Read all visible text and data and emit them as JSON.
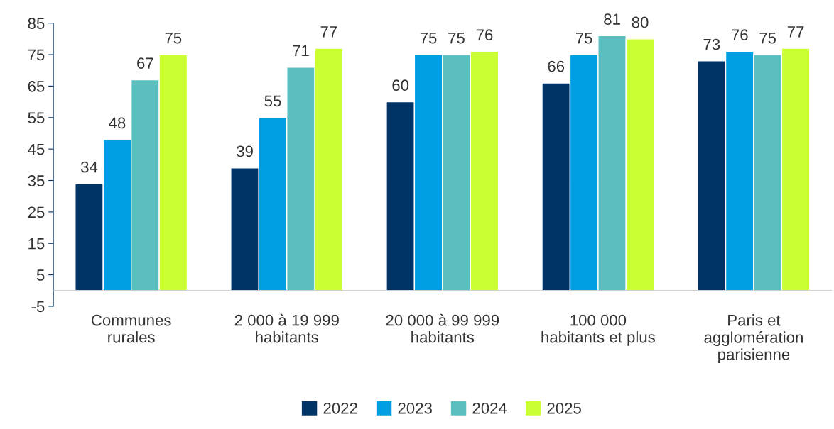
{
  "chart_data": {
    "type": "bar",
    "categories": [
      "Communes\nrurales",
      "2 000 à 19 999\nhabitants",
      "20 000 à 99 999\nhabitants",
      "100 000\nhabitants et plus",
      "Paris et\nagglomération\nparisienne"
    ],
    "series": [
      {
        "name": "2022",
        "color": "#003366",
        "values": [
          34,
          39,
          60,
          66,
          73
        ]
      },
      {
        "name": "2023",
        "color": "#009fe3",
        "values": [
          48,
          55,
          75,
          75,
          76
        ]
      },
      {
        "name": "2024",
        "color": "#5bbfc0",
        "values": [
          67,
          71,
          75,
          81,
          75
        ]
      },
      {
        "name": "2025",
        "color": "#ccff33",
        "values": [
          75,
          77,
          76,
          80,
          77
        ]
      }
    ],
    "ylim": [
      -5,
      85
    ],
    "yticks": [
      -5,
      5,
      15,
      25,
      35,
      45,
      55,
      65,
      75,
      85
    ],
    "grid": false,
    "legend": "bottom",
    "data_labels": true
  }
}
